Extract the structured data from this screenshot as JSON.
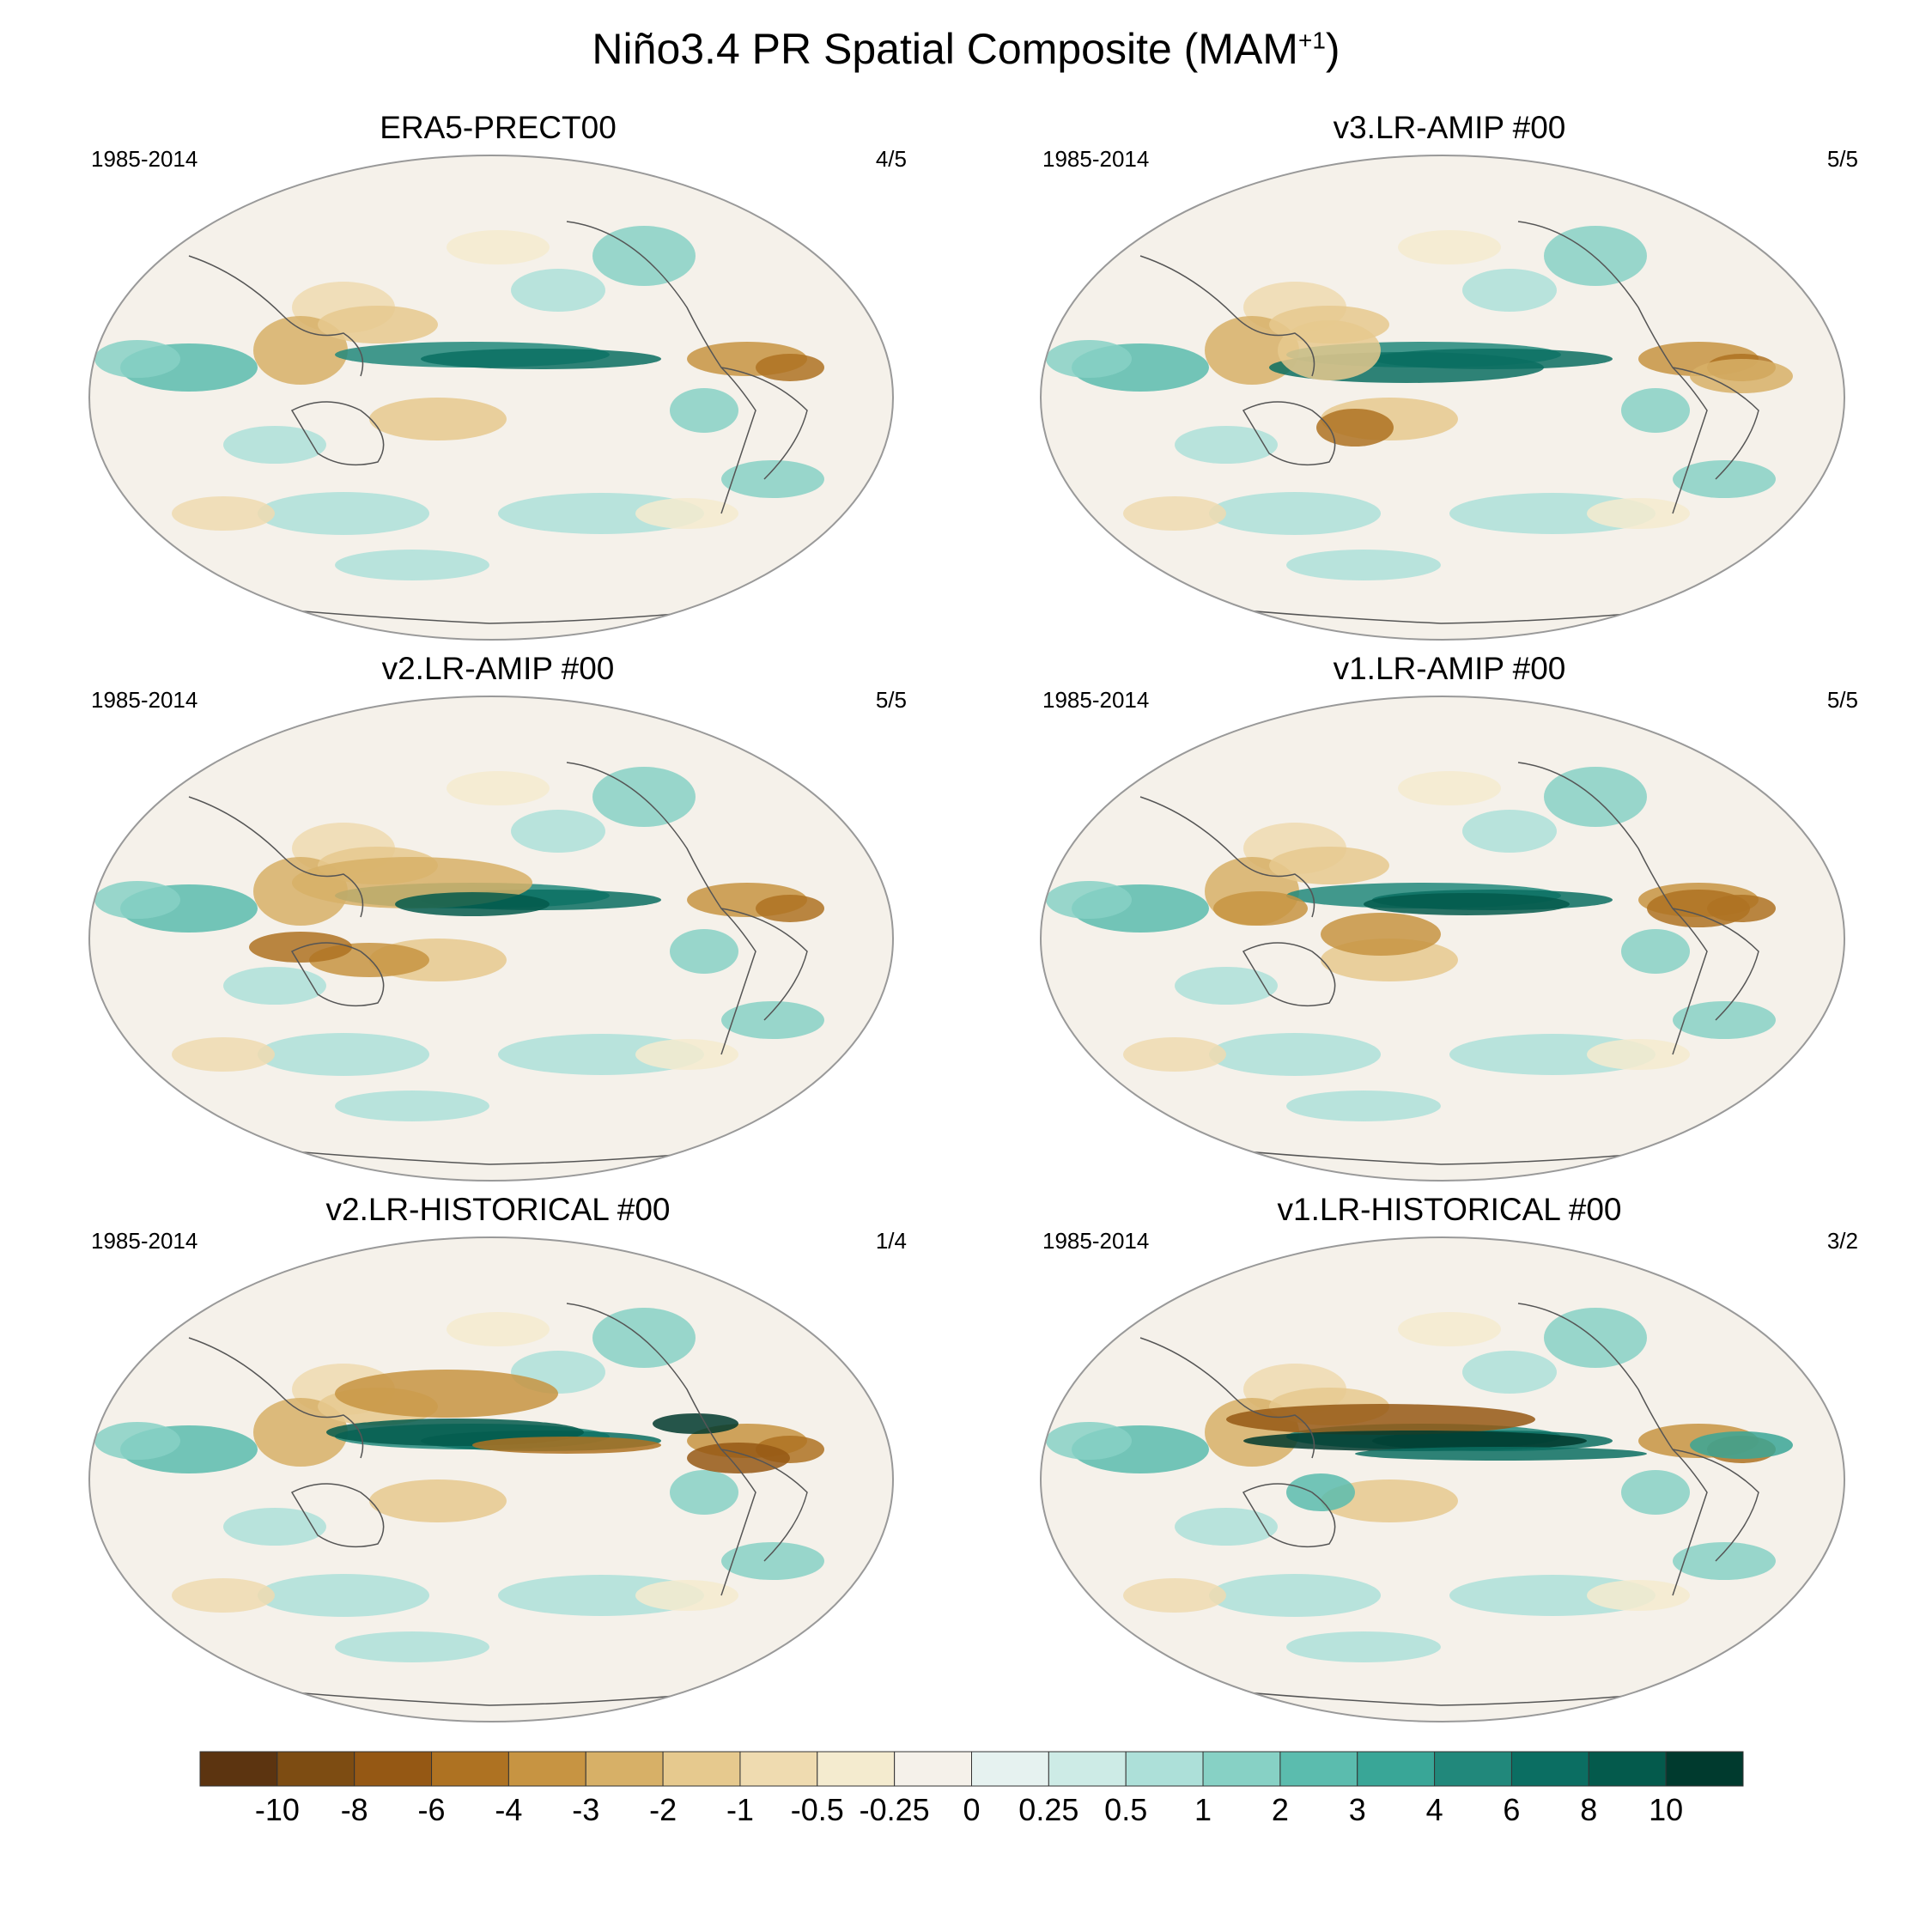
{
  "title": {
    "main": "Niño3.4 PR Spatial Composite (MAM",
    "sup": "+1",
    "close": ")"
  },
  "chart_data": {
    "type": "heatmap",
    "title": "Niño3.4 PR Spatial Composite (MAM+1)",
    "projection": "Robinson (global, Pacific-centered)",
    "colorbar": {
      "tick_labels": [
        "-10",
        "-8",
        "-6",
        "-4",
        "-3",
        "-2",
        "-1",
        "-0.5",
        "-0.25",
        "0",
        "0.25",
        "0.5",
        "1",
        "2",
        "3",
        "4",
        "6",
        "8",
        "10"
      ],
      "colors": [
        "#5c3410",
        "#7d4c12",
        "#955814",
        "#ae7222",
        "#c79442",
        "#d7b067",
        "#e6c98e",
        "#efdbb0",
        "#f4ebcf",
        "#f5f1ea",
        "#e6f2f0",
        "#cdebe6",
        "#ade0d9",
        "#87d1c5",
        "#5bbcae",
        "#39a697",
        "#21887b",
        "#0b6e62",
        "#045a4c",
        "#003a2e"
      ]
    },
    "panels": [
      {
        "title": "ERA5-PRECT00",
        "period": "1985-2014",
        "ratio": "4/5"
      },
      {
        "title": "v3.LR-AMIP  #00",
        "period": "1985-2014",
        "ratio": "5/5"
      },
      {
        "title": "v2.LR-AMIP  #00",
        "period": "1985-2014",
        "ratio": "5/5"
      },
      {
        "title": "v1.LR-AMIP  #00",
        "period": "1985-2014",
        "ratio": "5/5"
      },
      {
        "title": "v2.LR-HISTORICAL  #00",
        "period": "1985-2014",
        "ratio": "1/4"
      },
      {
        "title": "v1.LR-HISTORICAL  #00",
        "period": "1985-2014",
        "ratio": "3/2"
      }
    ]
  }
}
